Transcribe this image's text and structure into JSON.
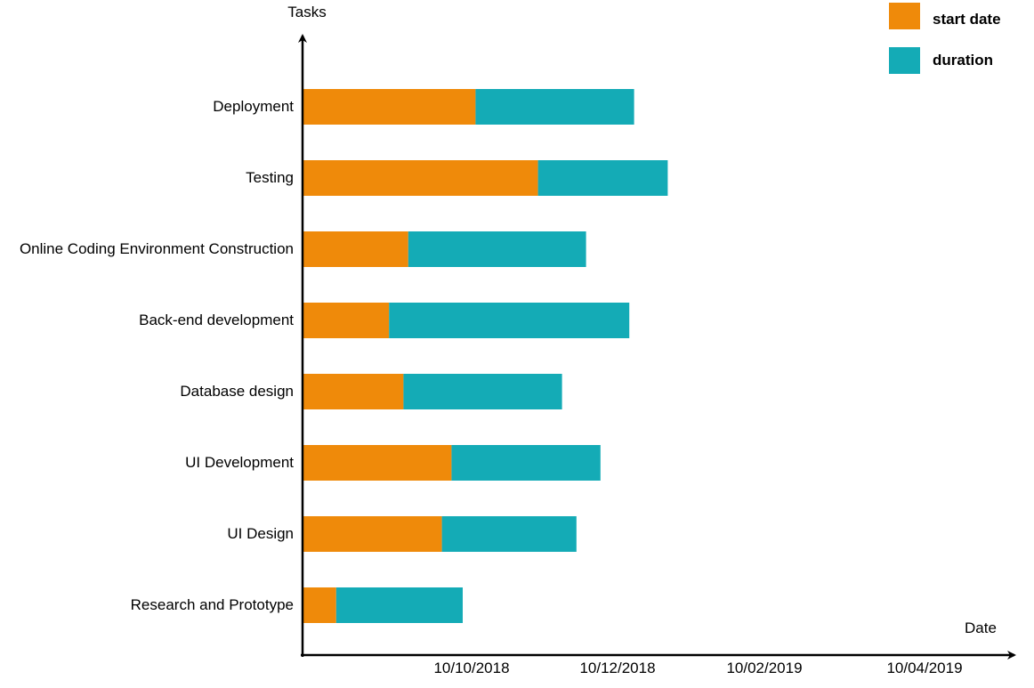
{
  "chart_data": {
    "type": "bar",
    "stacked": true,
    "orientation": "horizontal",
    "ylabel": "Tasks",
    "xlabel": "Date",
    "categories": [
      "Research and Prototype",
      "UI Design",
      "UI Development",
      "Database design",
      "Back-end development",
      "Online Coding Environment Construction",
      "Testing",
      "Deployment"
    ],
    "x_ticks": [
      "10/10/2018",
      "10/12/2018",
      "10/02/2019",
      "10/04/2019"
    ],
    "series": [
      {
        "name": "start date",
        "color": "#EF8A0A",
        "values": [
          21,
          87,
          93,
          63,
          54,
          66,
          147,
          108
        ]
      },
      {
        "name": "duration",
        "color": "#14ABB6",
        "values": [
          79,
          84,
          93,
          99,
          150,
          111,
          81,
          99
        ]
      }
    ],
    "legend_position": "top-right",
    "grid": false
  }
}
